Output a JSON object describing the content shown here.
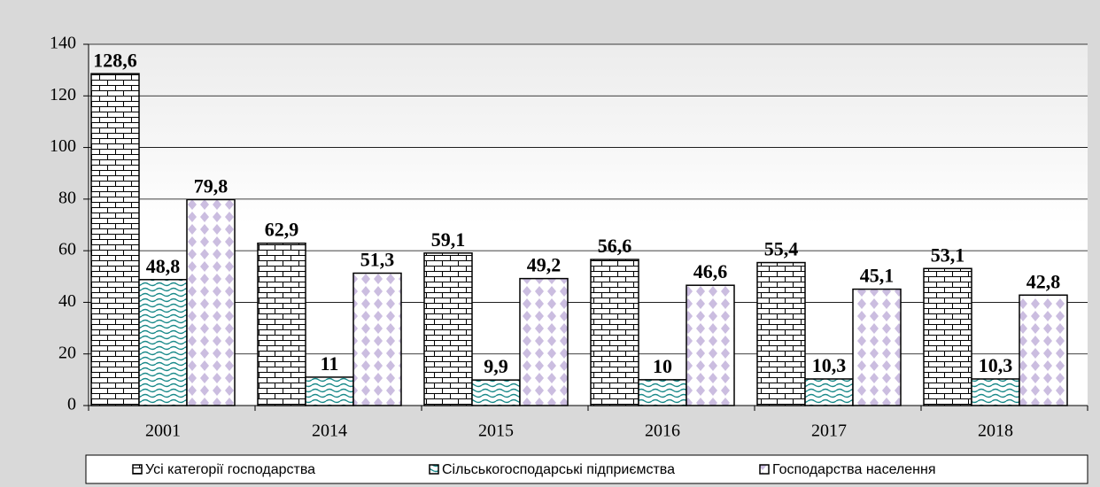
{
  "chart_data": {
    "type": "bar",
    "categories": [
      "2001",
      "2014",
      "2015",
      "2016",
      "2017",
      "2018"
    ],
    "series": [
      {
        "name": "Усі категорії господарства",
        "color": "#000000",
        "values": [
          128.6,
          62.9,
          59.1,
          56.6,
          55.4,
          53.1
        ],
        "value_labels": [
          "128,6",
          "62,9",
          "59,1",
          "56,6",
          "55,4",
          "53,1"
        ]
      },
      {
        "name": "Сільськогосподарські підприємства",
        "color": "#1a8a8a",
        "values": [
          48.8,
          11,
          9.9,
          10,
          10.3,
          10.3
        ],
        "value_labels": [
          "48,8",
          "11",
          "9,9",
          "10",
          "10,3",
          "10,3"
        ]
      },
      {
        "name": "Господарства населення",
        "color": "#cbbde0",
        "values": [
          79.8,
          51.3,
          49.2,
          46.6,
          45.1,
          42.8
        ],
        "value_labels": [
          "79,8",
          "51,3",
          "49,2",
          "46,6",
          "45,1",
          "42,8"
        ]
      }
    ],
    "ylim": [
      0,
      140
    ],
    "yticks": [
      0,
      20,
      40,
      60,
      80,
      100,
      120,
      140
    ],
    "grid": true,
    "legend": "bottom"
  }
}
